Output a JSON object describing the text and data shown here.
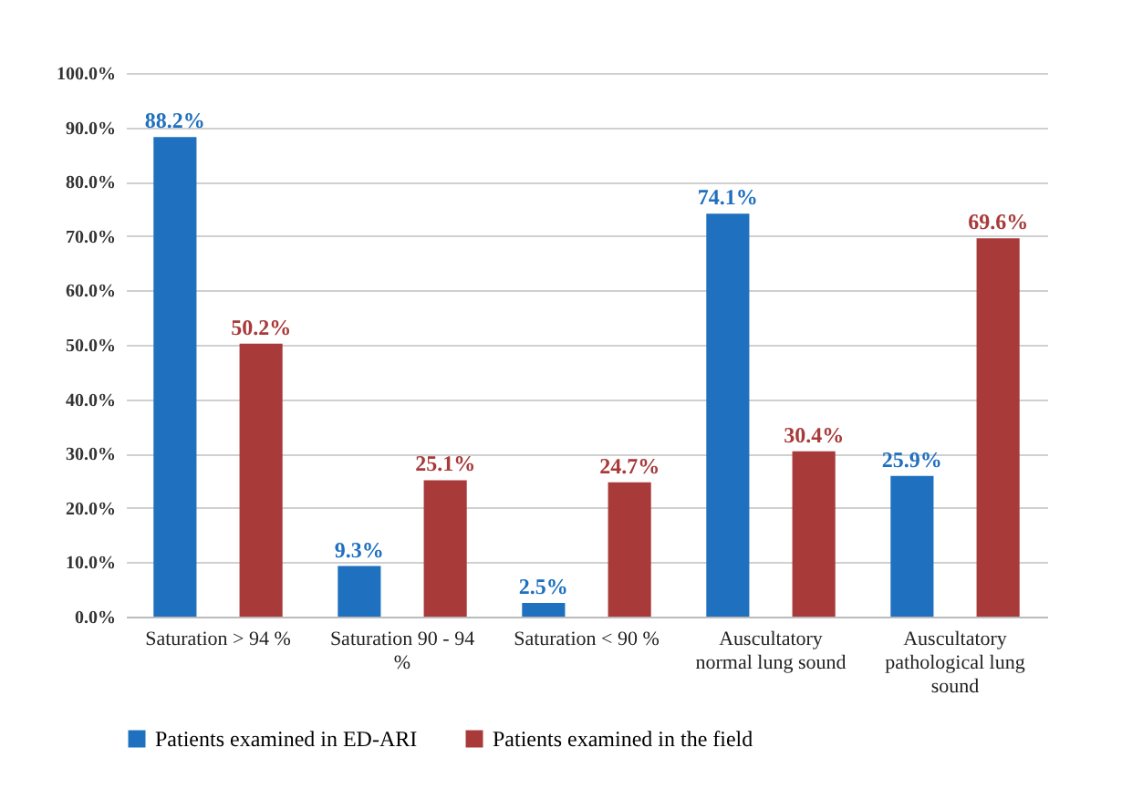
{
  "chart_data": {
    "type": "bar",
    "categories": [
      "Saturation > 94 %",
      "Saturation 90 - 94 %",
      "Saturation < 90 %",
      "Auscultatory normal lung sound",
      "Auscultatory pathological lung sound"
    ],
    "series": [
      {
        "name": "Patients examined in ED-ARI",
        "color": "#1f70bf",
        "values": [
          88.2,
          9.3,
          2.5,
          74.1,
          25.9
        ],
        "value_labels": [
          "88.2%",
          "9.3%",
          "2.5%",
          "74.1%",
          "25.9%"
        ]
      },
      {
        "name": "Patients examined in the field",
        "color": "#a83a3a",
        "values": [
          50.2,
          25.1,
          24.7,
          30.4,
          69.6
        ],
        "value_labels": [
          "50.2%",
          "25.1%",
          "24.7%",
          "30.4%",
          "69.6%"
        ]
      }
    ],
    "ylim": [
      0,
      100
    ],
    "yticks": [
      {
        "value": 0,
        "label": "0.0%"
      },
      {
        "value": 10,
        "label": "10.0%"
      },
      {
        "value": 20,
        "label": "20.0%"
      },
      {
        "value": 30,
        "label": "30.0%"
      },
      {
        "value": 40,
        "label": "40.0%"
      },
      {
        "value": 50,
        "label": "50.0%"
      },
      {
        "value": 60,
        "label": "60.0%"
      },
      {
        "value": 70,
        "label": "70.0%"
      },
      {
        "value": 80,
        "label": "80.0%"
      },
      {
        "value": 90,
        "label": "90.0%"
      },
      {
        "value": 100,
        "label": "100.0%"
      }
    ],
    "grid": "y",
    "legend": "bottom"
  }
}
